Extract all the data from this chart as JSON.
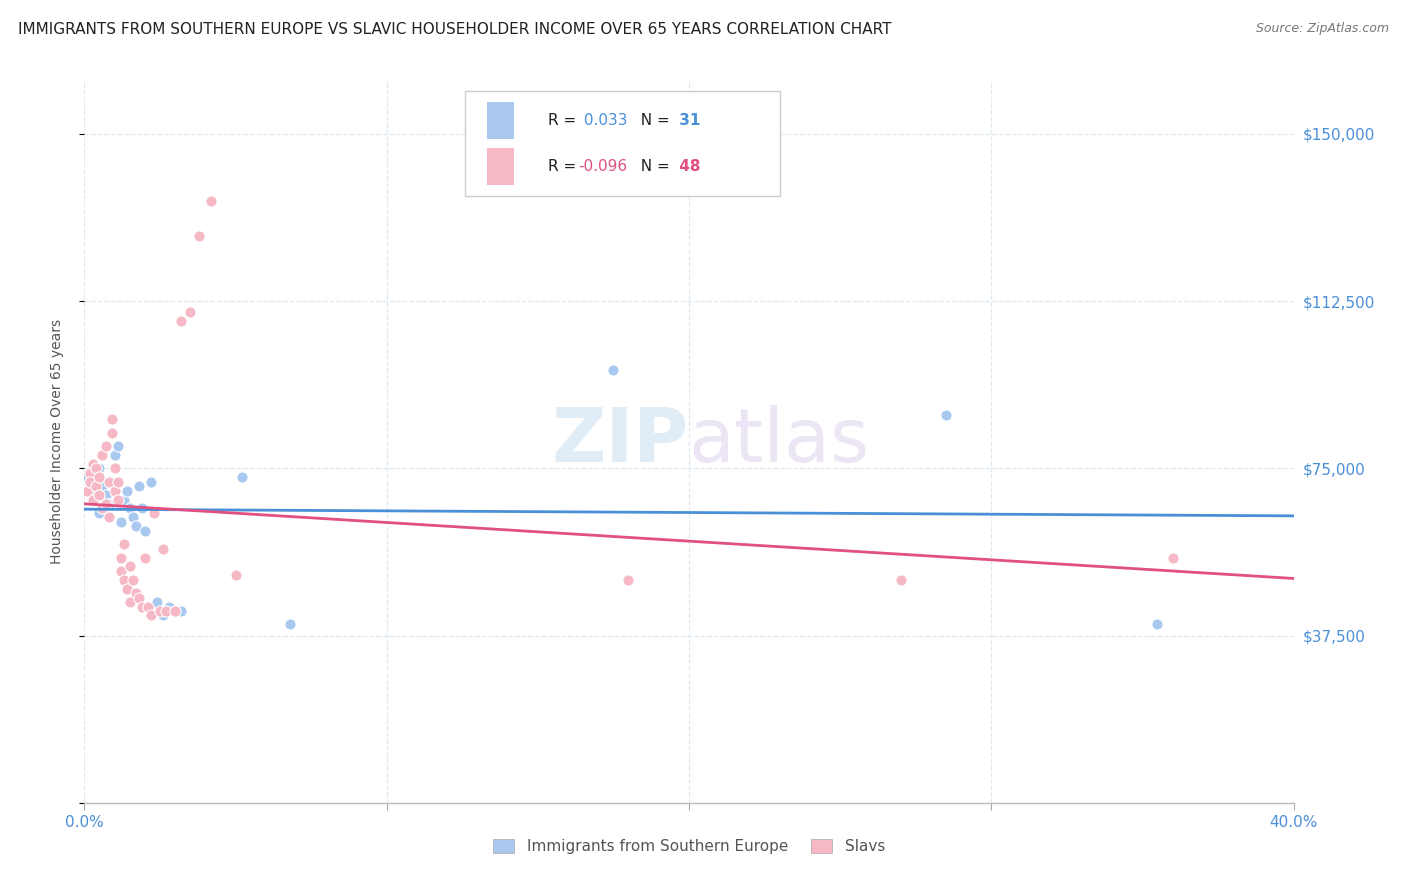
{
  "title": "IMMIGRANTS FROM SOUTHERN EUROPE VS SLAVIC HOUSEHOLDER INCOME OVER 65 YEARS CORRELATION CHART",
  "source": "Source: ZipAtlas.com",
  "ylabel": "Householder Income Over 65 years",
  "watermark": "ZIPatlas",
  "legend_blue_R": "0.033",
  "legend_blue_N": "31",
  "legend_pink_R": "-0.096",
  "legend_pink_N": "48",
  "legend_blue_label": "Immigrants from Southern Europe",
  "legend_pink_label": "Slavs",
  "yticks": [
    0,
    37500,
    75000,
    112500,
    150000
  ],
  "ytick_labels": [
    "",
    "$37,500",
    "$75,000",
    "$112,500",
    "$150,000"
  ],
  "xlim": [
    0.0,
    0.4
  ],
  "ylim": [
    0,
    162000
  ],
  "blue_scatter_x": [
    0.001,
    0.002,
    0.003,
    0.004,
    0.005,
    0.005,
    0.006,
    0.007,
    0.008,
    0.009,
    0.01,
    0.011,
    0.012,
    0.013,
    0.014,
    0.015,
    0.016,
    0.017,
    0.018,
    0.019,
    0.02,
    0.022,
    0.024,
    0.026,
    0.028,
    0.032,
    0.052,
    0.068,
    0.175,
    0.285,
    0.355
  ],
  "blue_scatter_y": [
    73000,
    70000,
    68000,
    74000,
    75000,
    65000,
    71000,
    69000,
    67000,
    72000,
    78000,
    80000,
    63000,
    68000,
    70000,
    66000,
    64000,
    62000,
    71000,
    66000,
    61000,
    72000,
    45000,
    42000,
    44000,
    43000,
    73000,
    40000,
    97000,
    87000,
    40000
  ],
  "pink_scatter_x": [
    0.001,
    0.002,
    0.002,
    0.003,
    0.003,
    0.004,
    0.004,
    0.005,
    0.005,
    0.006,
    0.006,
    0.007,
    0.007,
    0.008,
    0.008,
    0.009,
    0.009,
    0.01,
    0.01,
    0.011,
    0.011,
    0.012,
    0.012,
    0.013,
    0.013,
    0.014,
    0.015,
    0.015,
    0.016,
    0.017,
    0.018,
    0.019,
    0.02,
    0.021,
    0.022,
    0.023,
    0.025,
    0.026,
    0.027,
    0.03,
    0.032,
    0.035,
    0.038,
    0.042,
    0.05,
    0.18,
    0.27,
    0.36
  ],
  "pink_scatter_y": [
    70000,
    74000,
    72000,
    76000,
    68000,
    75000,
    71000,
    73000,
    69000,
    78000,
    66000,
    80000,
    67000,
    64000,
    72000,
    83000,
    86000,
    75000,
    70000,
    68000,
    72000,
    55000,
    52000,
    58000,
    50000,
    48000,
    45000,
    53000,
    50000,
    47000,
    46000,
    44000,
    55000,
    44000,
    42000,
    65000,
    43000,
    57000,
    43000,
    43000,
    108000,
    110000,
    127000,
    135000,
    51000,
    50000,
    50000,
    55000
  ],
  "blue_color": "#a8c8f0",
  "pink_color": "#f5b8c4",
  "blue_line_color": "#4a90d9",
  "pink_line_color": "#e05080",
  "background_color": "#ffffff",
  "grid_color": "#dde8f0",
  "title_color": "#222222",
  "right_tick_color": "#4a90d9",
  "marker_size": 65,
  "marker_edge_color": "#ffffff",
  "marker_edge_width": 0.8
}
